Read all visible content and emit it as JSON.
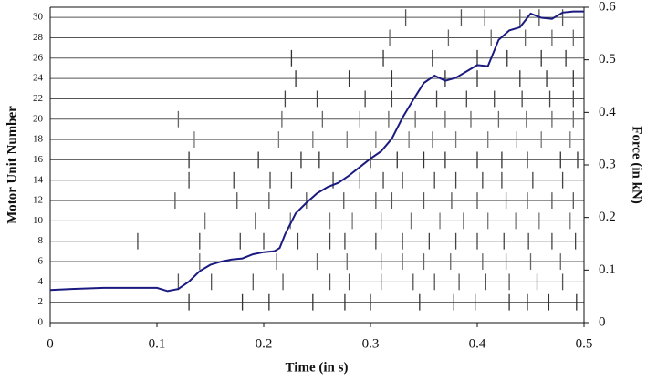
{
  "chart_data": {
    "type": "raster",
    "xlabel": "Time (in s)",
    "ylabel": "Motor Unit Number",
    "y2label": "Force (in kN)",
    "xlim": [
      0,
      0.5
    ],
    "xticks": [
      0,
      0.1,
      0.2,
      0.3,
      0.4,
      0.5
    ],
    "ylim": [
      0,
      31
    ],
    "yticks": [
      0,
      2,
      4,
      6,
      8,
      10,
      12,
      14,
      16,
      18,
      20,
      22,
      24,
      26,
      28,
      30
    ],
    "y2lim": [
      0,
      0.6
    ],
    "y2ticks": [
      0,
      0.1,
      0.2,
      0.3,
      0.4,
      0.5,
      0.6
    ],
    "grid": true,
    "spike_trains": [
      {
        "unit": 2,
        "color": "#333333",
        "times": [
          0.13,
          0.18,
          0.205,
          0.246,
          0.276,
          0.3,
          0.346,
          0.378,
          0.398,
          0.43,
          0.447,
          0.467,
          0.493
        ]
      },
      {
        "unit": 4,
        "color": "#555555",
        "times": [
          0.12,
          0.151,
          0.19,
          0.218,
          0.262,
          0.28,
          0.31,
          0.34,
          0.36,
          0.383,
          0.408,
          0.43,
          0.456,
          0.48
        ]
      },
      {
        "unit": 6,
        "color": "#666666",
        "times": [
          0.14,
          0.212,
          0.25,
          0.278,
          0.31,
          0.33,
          0.35,
          0.375,
          0.405,
          0.427,
          0.45,
          0.478
        ]
      },
      {
        "unit": 8,
        "color": "#444444",
        "times": [
          0.082,
          0.14,
          0.178,
          0.2,
          0.232,
          0.262,
          0.276,
          0.305,
          0.33,
          0.355,
          0.38,
          0.4,
          0.425,
          0.448,
          0.47,
          0.492
        ]
      },
      {
        "unit": 10,
        "color": "#777777",
        "times": [
          0.145,
          0.192,
          0.225,
          0.262,
          0.283,
          0.31,
          0.338,
          0.365,
          0.387,
          0.41,
          0.436,
          0.458,
          0.487
        ]
      },
      {
        "unit": 12,
        "color": "#555555",
        "times": [
          0.117,
          0.175,
          0.205,
          0.24,
          0.275,
          0.305,
          0.32,
          0.35,
          0.376,
          0.4,
          0.427,
          0.447,
          0.47,
          0.49
        ]
      },
      {
        "unit": 14,
        "color": "#444444",
        "times": [
          0.13,
          0.172,
          0.206,
          0.226,
          0.265,
          0.29,
          0.312,
          0.33,
          0.36,
          0.38,
          0.405,
          0.423,
          0.452,
          0.48
        ]
      },
      {
        "unit": 16,
        "color": "#333333",
        "times": [
          0.13,
          0.195,
          0.235,
          0.252,
          0.3,
          0.325,
          0.35,
          0.37,
          0.4,
          0.423,
          0.447,
          0.478,
          0.494
        ]
      },
      {
        "unit": 18,
        "color": "#777777",
        "times": [
          0.135,
          0.214,
          0.246,
          0.278,
          0.305,
          0.336,
          0.358,
          0.38,
          0.41,
          0.437,
          0.46,
          0.487
        ]
      },
      {
        "unit": 20,
        "color": "#666666",
        "times": [
          0.12,
          0.217,
          0.255,
          0.29,
          0.317,
          0.342,
          0.37,
          0.394,
          0.42,
          0.446,
          0.47,
          0.49
        ]
      },
      {
        "unit": 22,
        "color": "#444444",
        "times": [
          0.22,
          0.25,
          0.295,
          0.32,
          0.362,
          0.39,
          0.416,
          0.442,
          0.468,
          0.49
        ]
      },
      {
        "unit": 24,
        "color": "#333333",
        "times": [
          0.23,
          0.28,
          0.32,
          0.37,
          0.4,
          0.44,
          0.465,
          0.49
        ]
      },
      {
        "unit": 26,
        "color": "#333333",
        "times": [
          0.226,
          0.312,
          0.358,
          0.4,
          0.428,
          0.46,
          0.483
        ]
      },
      {
        "unit": 28,
        "color": "#666666",
        "times": [
          0.318,
          0.373,
          0.413,
          0.445,
          0.47,
          0.49
        ]
      },
      {
        "unit": 30,
        "color": "#555555",
        "times": [
          0.333,
          0.385,
          0.407,
          0.44,
          0.458,
          0.48
        ]
      }
    ],
    "line": {
      "color": "#1a1a80",
      "axis": "y2",
      "x": [
        0,
        0.02,
        0.05,
        0.1,
        0.11,
        0.12,
        0.13,
        0.14,
        0.15,
        0.16,
        0.17,
        0.18,
        0.19,
        0.2,
        0.21,
        0.215,
        0.22,
        0.23,
        0.24,
        0.25,
        0.26,
        0.27,
        0.28,
        0.29,
        0.3,
        0.31,
        0.32,
        0.33,
        0.34,
        0.35,
        0.36,
        0.37,
        0.38,
        0.39,
        0.4,
        0.41,
        0.42,
        0.43,
        0.44,
        0.45,
        0.46,
        0.47,
        0.48,
        0.49,
        0.5
      ],
      "values": [
        0.062,
        0.064,
        0.066,
        0.066,
        0.06,
        0.064,
        0.078,
        0.098,
        0.11,
        0.116,
        0.12,
        0.122,
        0.13,
        0.134,
        0.136,
        0.142,
        0.168,
        0.208,
        0.228,
        0.246,
        0.258,
        0.266,
        0.28,
        0.296,
        0.312,
        0.326,
        0.35,
        0.39,
        0.424,
        0.456,
        0.47,
        0.46,
        0.466,
        0.478,
        0.49,
        0.488,
        0.538,
        0.556,
        0.562,
        0.588,
        0.58,
        0.578,
        0.59,
        0.592,
        0.592
      ]
    }
  }
}
